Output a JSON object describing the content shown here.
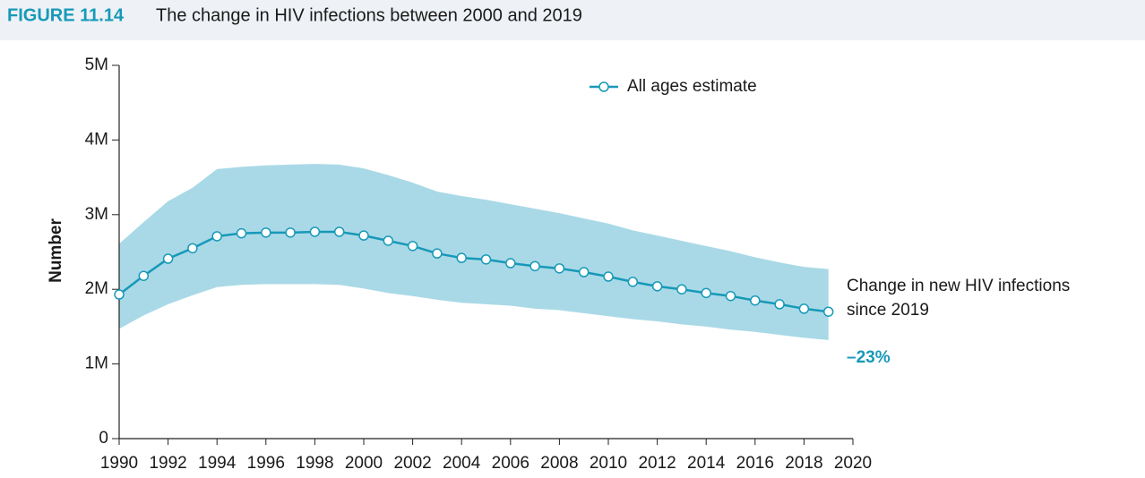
{
  "chart_data": {
    "type": "line",
    "figure_label": "FIGURE 11.14",
    "title": "The change in HIV infections between 2000 and 2019",
    "y_label": "Number",
    "x": [
      1990,
      1991,
      1992,
      1993,
      1994,
      1995,
      1996,
      1997,
      1998,
      1999,
      2000,
      2001,
      2002,
      2003,
      2004,
      2005,
      2006,
      2007,
      2008,
      2009,
      2010,
      2011,
      2012,
      2013,
      2014,
      2015,
      2016,
      2017,
      2018,
      2019
    ],
    "series": [
      {
        "name": "All ages estimate",
        "color": "#1799b8",
        "values": [
          1930000,
          2180000,
          2410000,
          2550000,
          2710000,
          2750000,
          2760000,
          2760000,
          2770000,
          2770000,
          2720000,
          2650000,
          2580000,
          2480000,
          2420000,
          2400000,
          2350000,
          2310000,
          2280000,
          2230000,
          2170000,
          2100000,
          2040000,
          2000000,
          1950000,
          1910000,
          1850000,
          1800000,
          1740000,
          1700000
        ]
      }
    ],
    "band": {
      "color": "#a9d9e7",
      "upper": [
        2610000,
        2900000,
        3180000,
        3360000,
        3610000,
        3640000,
        3660000,
        3670000,
        3680000,
        3670000,
        3620000,
        3530000,
        3430000,
        3310000,
        3250000,
        3200000,
        3140000,
        3080000,
        3020000,
        2950000,
        2880000,
        2790000,
        2720000,
        2650000,
        2580000,
        2510000,
        2430000,
        2360000,
        2300000,
        2270000
      ],
      "lower": [
        1470000,
        1650000,
        1800000,
        1920000,
        2030000,
        2060000,
        2070000,
        2070000,
        2070000,
        2060000,
        2010000,
        1950000,
        1910000,
        1860000,
        1820000,
        1800000,
        1780000,
        1740000,
        1720000,
        1680000,
        1640000,
        1600000,
        1570000,
        1530000,
        1500000,
        1460000,
        1430000,
        1390000,
        1350000,
        1320000
      ]
    },
    "xlim": [
      1990,
      2020
    ],
    "xticks": [
      1990,
      1992,
      1994,
      1996,
      1998,
      2000,
      2002,
      2004,
      2006,
      2008,
      2010,
      2012,
      2014,
      2016,
      2018,
      2020
    ],
    "ylim": [
      0,
      5000000
    ],
    "yticks": [
      0,
      {
        "value": 1000000,
        "label": "1M"
      },
      {
        "value": 2000000,
        "label": "2M"
      },
      {
        "value": 3000000,
        "label": "3M"
      },
      {
        "value": 4000000,
        "label": "4M"
      },
      {
        "value": 5000000,
        "label": "5M"
      }
    ],
    "annotation": {
      "lines": [
        "Change in new HIV infections",
        "since 2019"
      ],
      "change": "–23%",
      "change_color": "#1799b8"
    }
  }
}
